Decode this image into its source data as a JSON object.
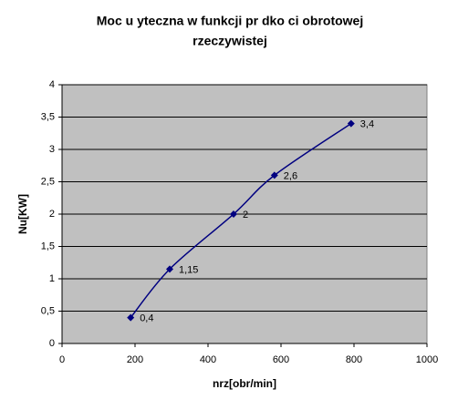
{
  "chart_data": {
    "type": "scatter",
    "title": [
      "Moc u  yteczna w funkcji pr  dko  ci obrotowej",
      "rzeczywistej"
    ],
    "xlabel": "nrz[obr/min]",
    "ylabel": "Nu[KW]",
    "series": [
      {
        "name": "Nu",
        "color": "#000080",
        "x": [
          188,
          295,
          470,
          582,
          792
        ],
        "values": [
          0.4,
          1.15,
          2,
          2.6,
          3.4
        ],
        "value_labels": [
          "0,4",
          "1,15",
          "2",
          "2,6",
          "3,4"
        ]
      }
    ],
    "xlim": [
      0,
      1000
    ],
    "xticks": [
      0,
      200,
      400,
      600,
      800,
      1000
    ],
    "ylim": [
      0,
      4
    ],
    "yticks": [
      0,
      {
        "value": 0.5,
        "label": "0,5"
      },
      1,
      {
        "value": 1.5,
        "label": "1,5"
      },
      2,
      {
        "value": 2.5,
        "label": "2,5"
      },
      3,
      {
        "value": 3.5,
        "label": "3,5"
      },
      4
    ],
    "grid": true,
    "smooth": true,
    "plot_background": "#c0c0c0"
  }
}
